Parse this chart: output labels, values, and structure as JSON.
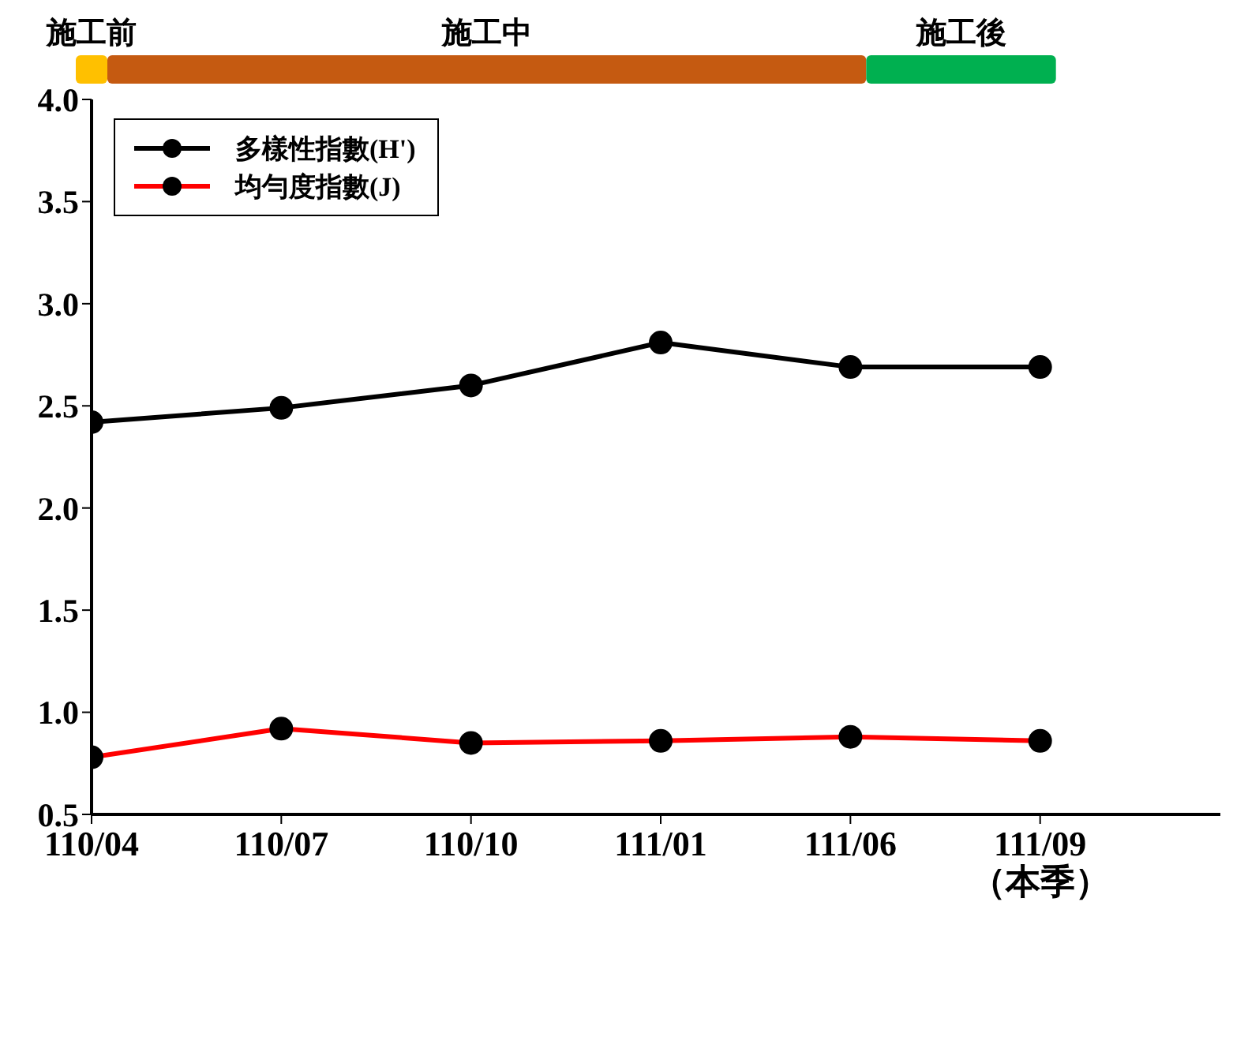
{
  "chart_data": {
    "type": "line",
    "categories": [
      "110/04",
      "110/07",
      "110/10",
      "111/01",
      "111/06",
      "111/09\n（本季）"
    ],
    "series": [
      {
        "name": "多樣性指數(H')",
        "color": "#000000",
        "values": [
          2.42,
          2.49,
          2.6,
          2.81,
          2.69,
          2.69
        ]
      },
      {
        "name": "均勻度指數(J)",
        "color": "#ff0000",
        "values": [
          0.78,
          0.92,
          0.85,
          0.86,
          0.88,
          0.86
        ]
      }
    ],
    "ylim": [
      0.5,
      4.0
    ],
    "yticks": [
      {
        "value": 0.5,
        "label": "0.5"
      },
      {
        "value": 1.0,
        "label": "1.0"
      },
      {
        "value": 1.5,
        "label": "1.5"
      },
      {
        "value": 2.0,
        "label": "2.0"
      },
      {
        "value": 2.5,
        "label": "2.5"
      },
      {
        "value": 3.0,
        "label": "3.0"
      },
      {
        "value": 3.5,
        "label": "3.5"
      },
      {
        "value": 4.0,
        "label": "4.0"
      }
    ],
    "annotations": [
      "施工前",
      "施工中",
      "施工後"
    ],
    "grid": false,
    "legend": "top left",
    "marker": "circle",
    "line_style": "solid"
  }
}
